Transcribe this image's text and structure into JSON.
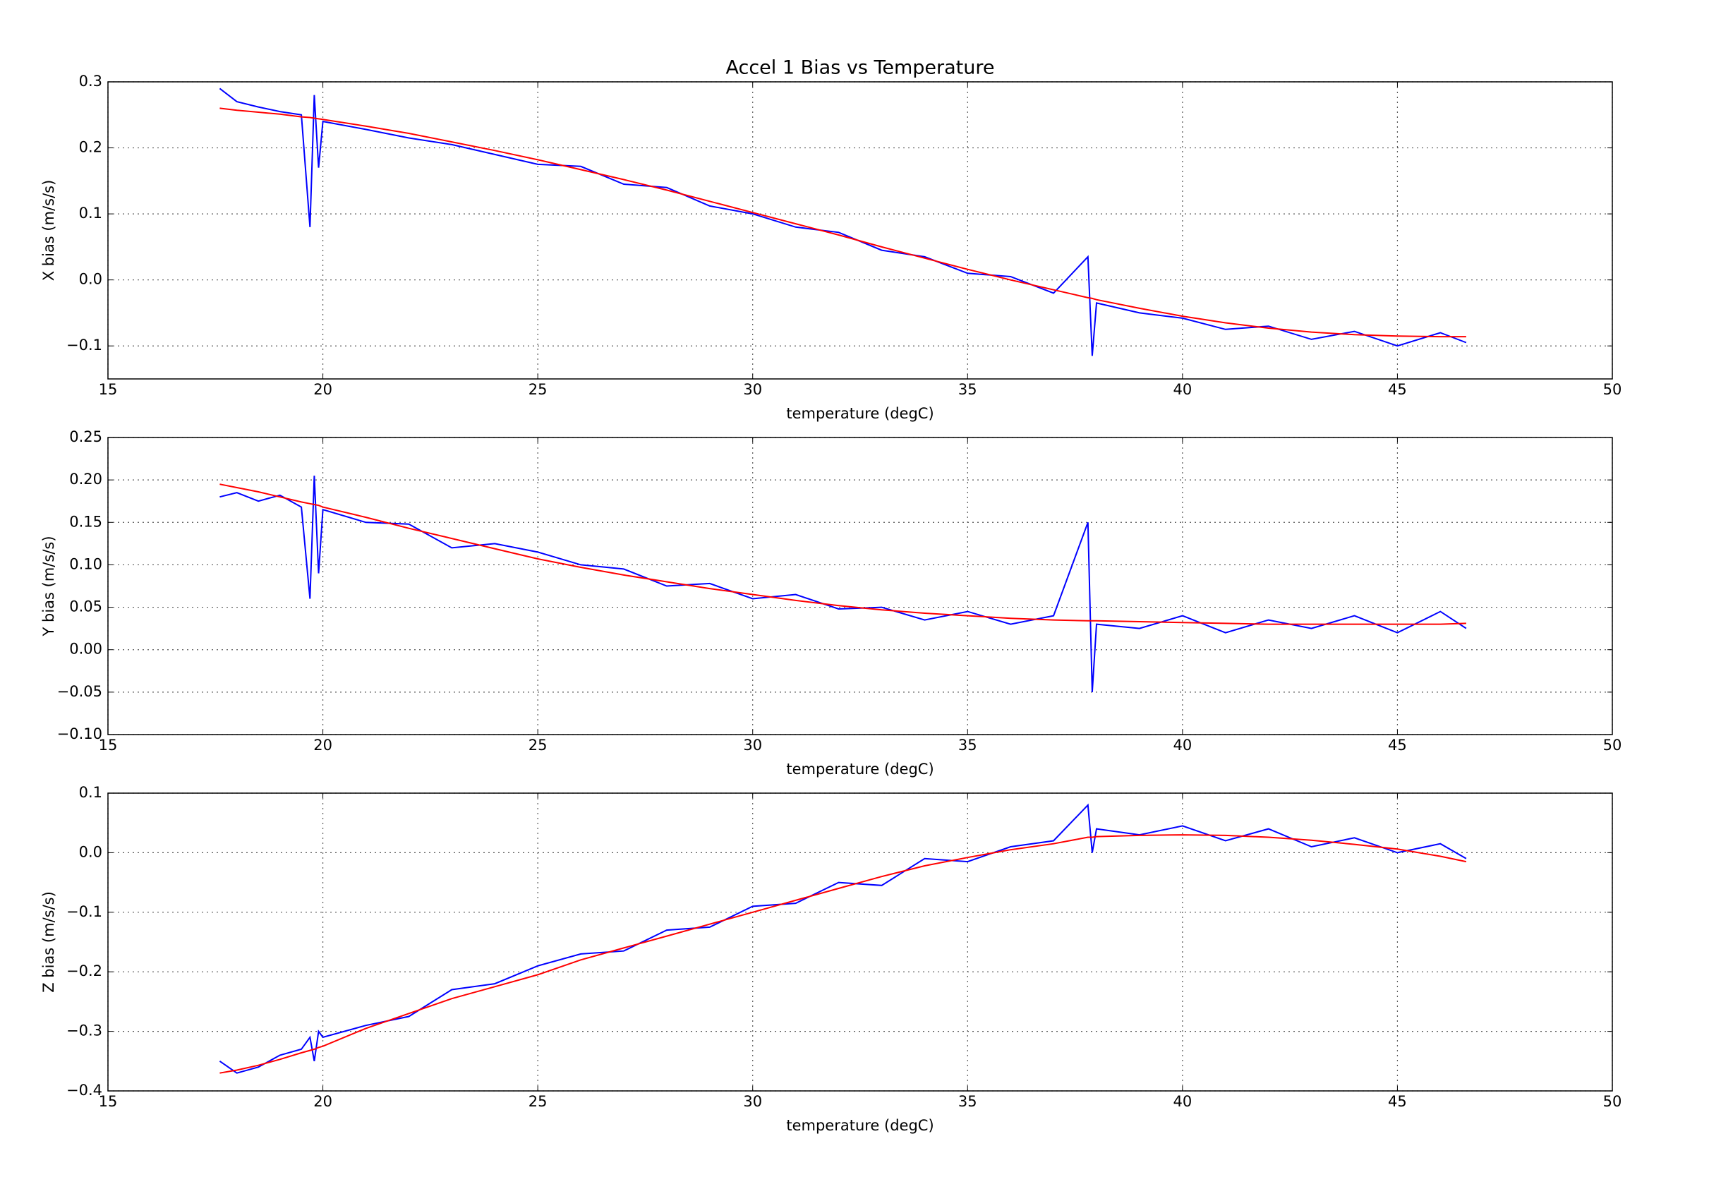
{
  "chart_data": [
    {
      "type": "line",
      "title": "Accel 1 Bias vs Temperature",
      "xlabel": "temperature (degC)",
      "ylabel": "X bias (m/s/s)",
      "x": [
        17.6,
        18,
        18.5,
        19,
        19.5,
        19.7,
        19.8,
        19.9,
        20,
        21,
        22,
        23,
        24,
        25,
        26,
        27,
        28,
        29,
        30,
        31,
        32,
        33,
        34,
        35,
        36,
        37,
        37.8,
        37.9,
        38,
        39,
        40,
        41,
        42,
        43,
        44,
        45,
        46,
        46.6
      ],
      "series": [
        {
          "color": "#0000ff",
          "values": [
            0.29,
            0.27,
            0.262,
            0.255,
            0.25,
            0.08,
            0.28,
            0.17,
            0.24,
            0.228,
            0.215,
            0.205,
            0.19,
            0.175,
            0.172,
            0.145,
            0.14,
            0.112,
            0.1,
            0.08,
            0.072,
            0.045,
            0.035,
            0.01,
            0.005,
            -0.02,
            0.035,
            -0.115,
            -0.035,
            -0.05,
            -0.058,
            -0.075,
            -0.07,
            -0.09,
            -0.078,
            -0.1,
            -0.08,
            -0.095
          ]
        },
        {
          "color": "#ff0000",
          "values": [
            0.26,
            0.257,
            0.254,
            0.251,
            0.247,
            0.246,
            0.245,
            0.244,
            0.243,
            0.233,
            0.222,
            0.209,
            0.196,
            0.182,
            0.167,
            0.152,
            0.136,
            0.119,
            0.102,
            0.085,
            0.068,
            0.05,
            0.033,
            0.016,
            0.0,
            -0.015,
            -0.027,
            -0.028,
            -0.03,
            -0.043,
            -0.055,
            -0.065,
            -0.073,
            -0.079,
            -0.083,
            -0.085,
            -0.086,
            -0.086
          ]
        }
      ],
      "xlim": [
        15,
        50
      ],
      "xticks": [
        15,
        20,
        25,
        30,
        35,
        40,
        45,
        50
      ],
      "ylim": [
        -0.15,
        0.3
      ],
      "yticks": [
        {
          "value": -0.1,
          "label": "−0.1"
        },
        {
          "value": 0,
          "label": "0.0"
        },
        0.1,
        0.2,
        0.3
      ],
      "grid": true
    },
    {
      "type": "line",
      "xlabel": "temperature (degC)",
      "ylabel": "Y bias (m/s/s)",
      "x": [
        17.6,
        18,
        18.5,
        19,
        19.5,
        19.7,
        19.8,
        19.9,
        20,
        21,
        22,
        23,
        24,
        25,
        26,
        27,
        28,
        29,
        30,
        31,
        32,
        33,
        34,
        35,
        36,
        37,
        37.8,
        37.9,
        38,
        39,
        40,
        41,
        42,
        43,
        44,
        45,
        46,
        46.6
      ],
      "series": [
        {
          "color": "#0000ff",
          "values": [
            0.18,
            0.185,
            0.175,
            0.182,
            0.168,
            0.06,
            0.205,
            0.09,
            0.165,
            0.15,
            0.148,
            0.12,
            0.125,
            0.115,
            0.1,
            0.095,
            0.075,
            0.078,
            0.06,
            0.065,
            0.048,
            0.05,
            0.035,
            0.045,
            0.03,
            0.04,
            0.15,
            -0.05,
            0.03,
            0.025,
            0.04,
            0.02,
            0.035,
            0.025,
            0.04,
            0.02,
            0.045,
            0.025
          ]
        },
        {
          "color": "#ff0000",
          "values": [
            0.195,
            0.191,
            0.186,
            0.18,
            0.174,
            0.172,
            0.171,
            0.17,
            0.168,
            0.156,
            0.143,
            0.131,
            0.119,
            0.107,
            0.097,
            0.088,
            0.08,
            0.072,
            0.065,
            0.058,
            0.052,
            0.047,
            0.043,
            0.04,
            0.037,
            0.035,
            0.034,
            0.034,
            0.034,
            0.033,
            0.032,
            0.031,
            0.03,
            0.03,
            0.03,
            0.03,
            0.03,
            0.031
          ]
        }
      ],
      "xlim": [
        15,
        50
      ],
      "xticks": [
        15,
        20,
        25,
        30,
        35,
        40,
        45,
        50
      ],
      "ylim": [
        -0.1,
        0.25
      ],
      "yticks": [
        {
          "value": -0.1,
          "label": "−0.10"
        },
        {
          "value": -0.05,
          "label": "−0.05"
        },
        {
          "value": 0,
          "label": "0.00"
        },
        0.05,
        {
          "value": 0.1,
          "label": "0.10"
        },
        0.15,
        {
          "value": 0.2,
          "label": "0.20"
        },
        0.25
      ],
      "grid": true
    },
    {
      "type": "line",
      "xlabel": "temperature (degC)",
      "ylabel": "Z bias (m/s/s)",
      "x": [
        17.6,
        18,
        18.5,
        19,
        19.5,
        19.7,
        19.8,
        19.9,
        20,
        21,
        22,
        23,
        24,
        25,
        26,
        27,
        28,
        29,
        30,
        31,
        32,
        33,
        34,
        35,
        36,
        37,
        37.8,
        37.9,
        38,
        39,
        40,
        41,
        42,
        43,
        44,
        45,
        46,
        46.6
      ],
      "series": [
        {
          "color": "#0000ff",
          "values": [
            -0.35,
            -0.37,
            -0.36,
            -0.34,
            -0.33,
            -0.31,
            -0.35,
            -0.3,
            -0.31,
            -0.29,
            -0.275,
            -0.23,
            -0.22,
            -0.19,
            -0.17,
            -0.165,
            -0.13,
            -0.125,
            -0.09,
            -0.085,
            -0.05,
            -0.055,
            -0.01,
            -0.015,
            0.01,
            0.02,
            0.08,
            0.0,
            0.04,
            0.03,
            0.045,
            0.02,
            0.04,
            0.01,
            0.025,
            0.0,
            0.015,
            -0.01
          ]
        },
        {
          "color": "#ff0000",
          "values": [
            -0.37,
            -0.365,
            -0.357,
            -0.347,
            -0.336,
            -0.332,
            -0.33,
            -0.327,
            -0.325,
            -0.295,
            -0.27,
            -0.245,
            -0.225,
            -0.205,
            -0.18,
            -0.16,
            -0.14,
            -0.12,
            -0.1,
            -0.08,
            -0.06,
            -0.04,
            -0.022,
            -0.008,
            0.005,
            0.015,
            0.026,
            0.026,
            0.027,
            0.029,
            0.03,
            0.029,
            0.026,
            0.021,
            0.014,
            0.006,
            -0.006,
            -0.015
          ]
        }
      ],
      "xlim": [
        15,
        50
      ],
      "xticks": [
        15,
        20,
        25,
        30,
        35,
        40,
        45,
        50
      ],
      "ylim": [
        -0.4,
        0.1
      ],
      "yticks": [
        {
          "value": -0.4,
          "label": "−0.4"
        },
        {
          "value": -0.3,
          "label": "−0.3"
        },
        {
          "value": -0.2,
          "label": "−0.2"
        },
        {
          "value": -0.1,
          "label": "−0.1"
        },
        {
          "value": 0,
          "label": "0.0"
        },
        0.1
      ],
      "grid": true
    }
  ]
}
